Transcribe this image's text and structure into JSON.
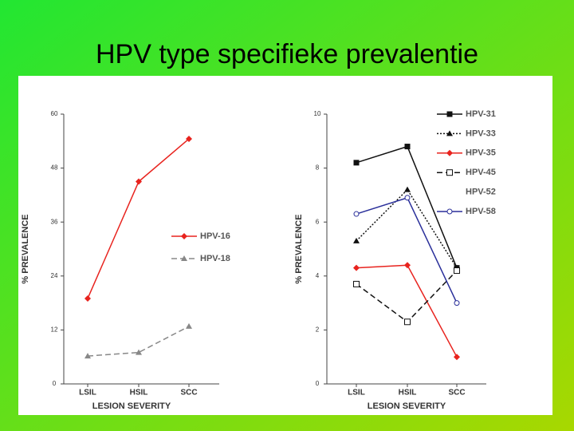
{
  "title": "HPV type specifieke prevalentie",
  "chart_data": [
    {
      "type": "line",
      "categories": [
        "LSIL",
        "HSIL",
        "SCC"
      ],
      "ylim": [
        0,
        60
      ],
      "yticks": [
        0,
        12,
        24,
        36,
        48,
        60
      ],
      "ylabel": "% PREVALENCE",
      "xlabel": "LESION SEVERITY",
      "series": [
        {
          "name": "HPV-16",
          "color": "#e8231e",
          "marker": "diamond",
          "dash": "solid",
          "values": [
            19,
            45,
            54.5
          ]
        },
        {
          "name": "HPV-18",
          "color": "#888888",
          "marker": "triangle",
          "dash": "dashed",
          "values": [
            6.2,
            7,
            12.8
          ]
        }
      ]
    },
    {
      "type": "line",
      "categories": [
        "LSIL",
        "HSIL",
        "SCC"
      ],
      "ylim": [
        0,
        10
      ],
      "yticks": [
        0,
        2,
        4,
        6,
        8,
        10
      ],
      "ylabel": "% PREVALENCE",
      "xlabel": "LESION SEVERITY",
      "series": [
        {
          "name": "HPV-31",
          "color": "#111111",
          "marker": "square",
          "dash": "solid",
          "values": [
            8.2,
            8.8,
            4.3
          ]
        },
        {
          "name": "HPV-33",
          "color": "#111111",
          "marker": "triangle",
          "dash": "dotted",
          "values": [
            5.3,
            7.2,
            4.3
          ]
        },
        {
          "name": "HPV-35",
          "color": "#e8231e",
          "marker": "diamond",
          "dash": "solid",
          "values": [
            4.3,
            4.4,
            1.0
          ]
        },
        {
          "name": "HPV-45",
          "color": "#111111",
          "marker": "opensquare",
          "dash": "dashed",
          "values": [
            3.7,
            2.3,
            4.2
          ]
        },
        {
          "name": "HPV-52",
          "color": "#ffffff",
          "marker": "none",
          "dash": "solid",
          "values": [
            null,
            null,
            null
          ]
        },
        {
          "name": "HPV-58",
          "color": "#2a2f9a",
          "marker": "opencircle",
          "dash": "solid",
          "values": [
            6.3,
            6.9,
            3.0
          ]
        }
      ]
    }
  ]
}
